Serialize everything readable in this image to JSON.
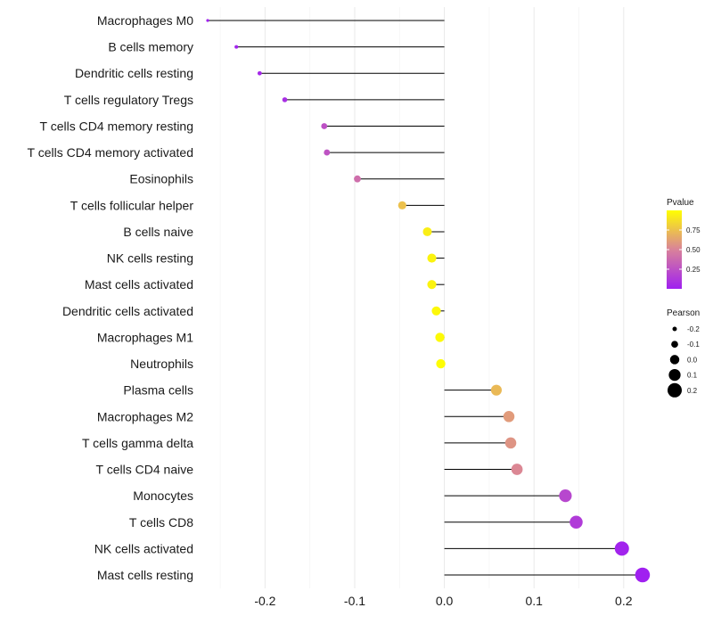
{
  "chart_data": {
    "type": "scatter",
    "subtype": "lollipop",
    "title": "",
    "xlabel": "",
    "ylabel": "",
    "xlim": [
      -0.265,
      0.235
    ],
    "x_ticks": [
      -0.2,
      -0.1,
      0.0,
      0.1,
      0.2
    ],
    "x_tick_labels": [
      "-0.2",
      "-0.1",
      "0.0",
      "0.1",
      "0.2"
    ],
    "grid": true,
    "categories": [
      "Macrophages M0",
      "B cells memory",
      "Dendritic cells resting",
      "T cells regulatory  Tregs",
      "T cells CD4 memory resting",
      "T cells CD4 memory activated",
      "Eosinophils",
      "T cells follicular helper",
      "B cells naive",
      "NK cells resting",
      "Mast cells activated",
      "Dendritic cells activated",
      "Macrophages M1",
      "Neutrophils",
      "Plasma cells",
      "Macrophages M2",
      "T cells gamma delta",
      "T cells CD4 naive",
      "Monocytes",
      "T cells CD8",
      "NK cells activated",
      "Mast cells resting"
    ],
    "series": [
      {
        "name": "Pearson",
        "values": [
          -0.264,
          -0.232,
          -0.206,
          -0.178,
          -0.134,
          -0.131,
          -0.097,
          -0.047,
          -0.019,
          -0.014,
          -0.014,
          -0.009,
          -0.005,
          -0.004,
          0.058,
          0.072,
          0.074,
          0.081,
          0.135,
          0.147,
          0.198,
          0.221
        ],
        "pvalue": [
          0.0,
          0.02,
          0.04,
          0.07,
          0.25,
          0.26,
          0.4,
          0.75,
          0.93,
          0.95,
          0.95,
          0.97,
          0.98,
          0.99,
          0.72,
          0.6,
          0.57,
          0.52,
          0.2,
          0.14,
          0.02,
          0.0
        ]
      }
    ],
    "legends": [
      {
        "title": "Pvalue",
        "type": "colorbar",
        "placement": "right",
        "labels": [
          "0.75",
          "0.50",
          "0.25"
        ],
        "values": [
          0.75,
          0.5,
          0.25
        ],
        "range": [
          0.0,
          1.0
        ],
        "color_low": "#a020f0",
        "color_mid": "#d9829a",
        "color_high": "#ffff00"
      },
      {
        "title": "Pearson",
        "type": "size",
        "placement": "right",
        "labels": [
          "-0.2",
          "-0.1",
          "0.0",
          "0.1",
          "0.2"
        ],
        "values": [
          -0.2,
          -0.1,
          0.0,
          0.1,
          0.2
        ]
      }
    ]
  }
}
